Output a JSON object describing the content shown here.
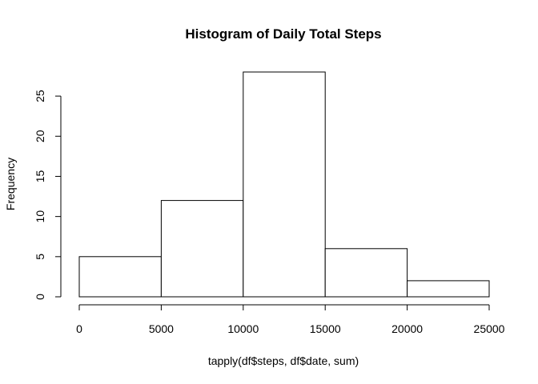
{
  "chart_data": {
    "type": "bar",
    "title": "Histogram of Daily Total Steps",
    "xlabel": "tapply(df$steps, df$date, sum)",
    "ylabel": "Frequency",
    "bins": [
      {
        "from": 0,
        "to": 5000,
        "count": 5
      },
      {
        "from": 5000,
        "to": 10000,
        "count": 12
      },
      {
        "from": 10000,
        "to": 15000,
        "count": 28
      },
      {
        "from": 15000,
        "to": 20000,
        "count": 6
      },
      {
        "from": 20000,
        "to": 25000,
        "count": 2
      }
    ],
    "xlim": [
      0,
      25000
    ],
    "ylim": [
      0,
      28
    ],
    "x_ticks": [
      0,
      5000,
      10000,
      15000,
      20000,
      25000
    ],
    "y_ticks": [
      0,
      5,
      10,
      15,
      20,
      25
    ],
    "grid": false,
    "legend": "none",
    "colors": {
      "bar_fill": "#ffffff",
      "bar_stroke": "#000000",
      "background": "#ffffff"
    }
  }
}
